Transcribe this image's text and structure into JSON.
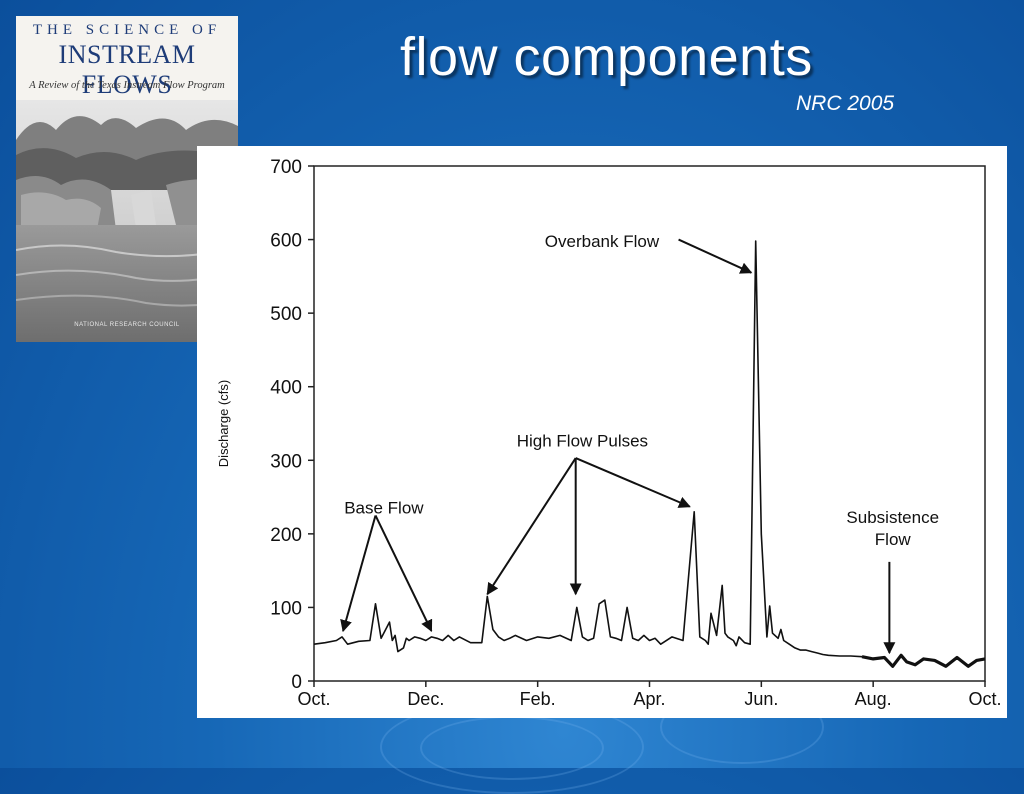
{
  "slide": {
    "title": "flow components",
    "citation": "NRC 2005"
  },
  "book_cover": {
    "series": "THE SCIENCE OF",
    "title": "INSTREAM FLOWS",
    "subtitle": "A Review of the Texas Instream Flow Program",
    "publisher": "NATIONAL RESEARCH COUNCIL"
  },
  "chart_data": {
    "type": "line",
    "title": "",
    "ylabel": "Discharge (cfs)",
    "xlabel": "",
    "ylim": [
      0,
      700
    ],
    "xlim": [
      0,
      12
    ],
    "y_ticks": [
      0,
      100,
      200,
      300,
      400,
      500,
      600,
      700
    ],
    "x_ticks": [
      {
        "label": "Oct.",
        "value": 0
      },
      {
        "label": "Dec.",
        "value": 2
      },
      {
        "label": "Feb.",
        "value": 4
      },
      {
        "label": "Apr.",
        "value": 6
      },
      {
        "label": "Jun.",
        "value": 8
      },
      {
        "label": "Aug.",
        "value": 10
      },
      {
        "label": "Oct.",
        "value": 12
      }
    ],
    "grid": false,
    "series": [
      {
        "x": [
          0.0,
          0.2,
          0.4,
          0.5,
          0.6,
          0.8,
          1.0,
          1.1,
          1.2,
          1.35,
          1.4,
          1.45,
          1.5,
          1.6,
          1.65,
          1.7,
          1.8,
          1.9,
          2.0,
          2.1,
          2.2,
          2.3,
          2.4,
          2.5,
          2.6,
          2.8,
          3.0,
          3.1,
          3.2,
          3.3,
          3.4,
          3.5,
          3.6,
          3.8,
          4.0,
          4.2,
          4.4,
          4.6,
          4.7,
          4.8,
          4.9,
          5.0,
          5.1,
          5.2,
          5.3,
          5.4,
          5.5,
          5.6,
          5.7,
          5.8,
          5.9,
          6.0,
          6.1,
          6.2,
          6.4,
          6.6,
          6.8,
          6.9,
          7.0,
          7.05,
          7.1,
          7.2,
          7.3,
          7.35,
          7.4,
          7.5,
          7.55,
          7.6,
          7.7,
          7.8,
          7.9,
          8.0,
          8.1,
          8.15,
          8.2,
          8.3,
          8.35,
          8.4,
          8.5,
          8.6,
          8.7,
          8.8,
          8.9,
          9.0,
          9.1,
          9.2,
          9.4,
          9.6,
          9.8
        ],
        "y": [
          50,
          52,
          55,
          60,
          50,
          54,
          55,
          105,
          58,
          80,
          55,
          62,
          40,
          45,
          58,
          55,
          60,
          58,
          55,
          60,
          58,
          55,
          62,
          55,
          60,
          52,
          52,
          115,
          70,
          60,
          55,
          58,
          62,
          55,
          60,
          58,
          62,
          55,
          100,
          60,
          55,
          58,
          105,
          110,
          60,
          58,
          55,
          100,
          58,
          55,
          62,
          55,
          58,
          50,
          60,
          55,
          230,
          60,
          55,
          50,
          92,
          62,
          130,
          65,
          60,
          55,
          48,
          60,
          52,
          50,
          598,
          200,
          60,
          102,
          65,
          58,
          70,
          55,
          50,
          45,
          42,
          42,
          40,
          38,
          36,
          35,
          34,
          34,
          33
        ]
      },
      {
        "x": [
          9.8,
          10.0,
          10.2,
          10.35,
          10.5,
          10.6,
          10.75,
          10.9,
          11.1,
          11.3,
          11.5,
          11.7,
          11.85,
          12.0
        ],
        "y": [
          33,
          30,
          32,
          20,
          35,
          26,
          22,
          30,
          28,
          20,
          32,
          20,
          28,
          30
        ]
      }
    ],
    "annotations": [
      {
        "text": "Base Flow"
      },
      {
        "text": "High Flow Pulses"
      },
      {
        "text": "Overbank Flow"
      },
      {
        "text": "Subsistence",
        "text2": "Flow"
      }
    ]
  }
}
